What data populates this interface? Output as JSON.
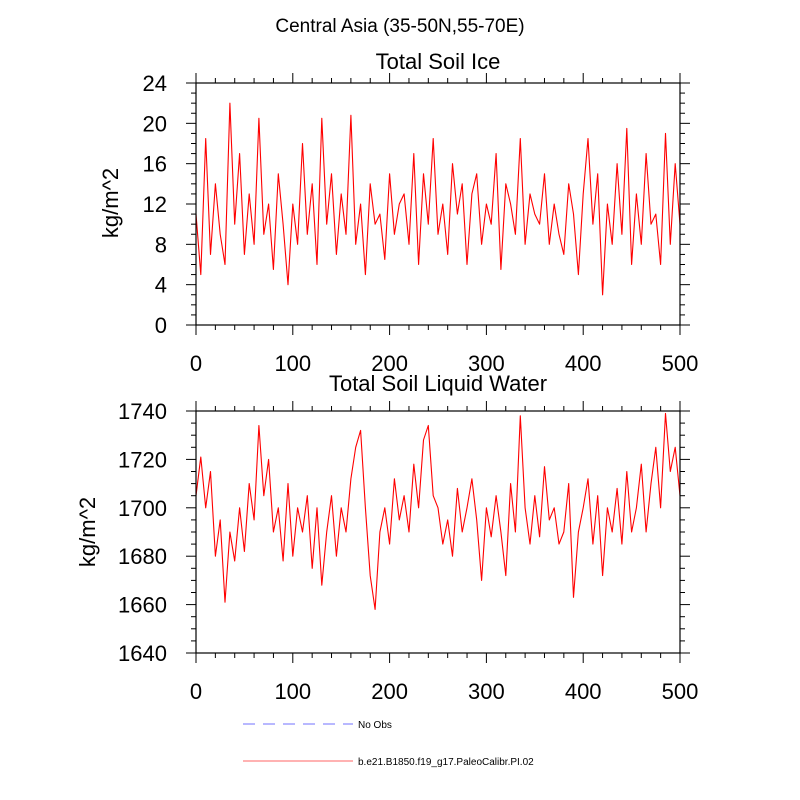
{
  "figure_title": "Central Asia (35-50N,55-70E)",
  "chart_data": [
    {
      "type": "line",
      "title": "Total Soil Ice",
      "xlabel": "",
      "ylabel": "kg/m^2",
      "xlim": [
        0,
        500
      ],
      "ylim": [
        0,
        24
      ],
      "x_ticks": [
        0,
        100,
        200,
        300,
        400,
        500
      ],
      "y_ticks": [
        0,
        4,
        8,
        12,
        16,
        20,
        24
      ],
      "x_tick_labels": [
        "0",
        "100",
        "200",
        "300",
        "400",
        "500"
      ],
      "y_tick_labels": [
        "0",
        "4",
        "8",
        "12",
        "16",
        "20",
        "24"
      ],
      "series": [
        {
          "name": "b.e21.B1850.f19_g17.PaleoCalibr.PI.02",
          "color": "#ff0000",
          "x": [
            0,
            5,
            10,
            15,
            20,
            25,
            30,
            35,
            40,
            45,
            50,
            55,
            60,
            65,
            70,
            75,
            80,
            85,
            90,
            95,
            100,
            105,
            110,
            115,
            120,
            125,
            130,
            135,
            140,
            145,
            150,
            155,
            160,
            165,
            170,
            175,
            180,
            185,
            190,
            195,
            200,
            205,
            210,
            215,
            220,
            225,
            230,
            235,
            240,
            245,
            250,
            255,
            260,
            265,
            270,
            275,
            280,
            285,
            290,
            295,
            300,
            305,
            310,
            315,
            320,
            325,
            330,
            335,
            340,
            345,
            350,
            355,
            360,
            365,
            370,
            375,
            380,
            385,
            390,
            395,
            400,
            405,
            410,
            415,
            420,
            425,
            430,
            435,
            440,
            445,
            450,
            455,
            460,
            465,
            470,
            475,
            480,
            485,
            490,
            495,
            500
          ],
          "values": [
            11,
            5,
            18.5,
            7,
            14,
            9,
            6,
            22,
            10,
            17,
            7,
            13,
            8,
            20.5,
            9,
            12,
            5.5,
            15,
            10,
            4,
            12,
            8,
            18,
            9,
            14,
            6,
            20.5,
            10,
            15,
            7,
            13,
            9,
            20.8,
            8,
            12,
            5,
            14,
            10,
            11,
            6.5,
            15,
            9,
            12,
            13,
            8,
            17,
            6,
            15,
            10,
            18.5,
            9,
            12,
            7,
            16,
            11,
            14,
            6,
            13,
            15,
            8,
            12,
            10,
            17,
            5.5,
            14,
            12,
            9,
            18.5,
            8,
            13,
            11,
            10,
            15,
            8,
            12,
            9,
            7,
            14,
            11,
            5,
            13,
            18.5,
            10,
            15,
            3,
            12,
            8,
            16,
            9,
            19.5,
            6,
            13,
            8,
            17,
            10,
            11,
            6,
            19,
            8,
            16,
            10
          ]
        }
      ]
    },
    {
      "type": "line",
      "title": "Total Soil Liquid Water",
      "xlabel": "",
      "ylabel": "kg/m^2",
      "xlim": [
        0,
        500
      ],
      "ylim": [
        1640,
        1740
      ],
      "x_ticks": [
        0,
        100,
        200,
        300,
        400,
        500
      ],
      "y_ticks": [
        1640,
        1660,
        1680,
        1700,
        1720,
        1740
      ],
      "x_tick_labels": [
        "0",
        "100",
        "200",
        "300",
        "400",
        "500"
      ],
      "y_tick_labels": [
        "1640",
        "1660",
        "1680",
        "1700",
        "1720",
        "1740"
      ],
      "series": [
        {
          "name": "b.e21.B1850.f19_g17.PaleoCalibr.PI.02",
          "color": "#ff0000",
          "x": [
            0,
            5,
            10,
            15,
            20,
            25,
            30,
            35,
            40,
            45,
            50,
            55,
            60,
            65,
            70,
            75,
            80,
            85,
            90,
            95,
            100,
            105,
            110,
            115,
            120,
            125,
            130,
            135,
            140,
            145,
            150,
            155,
            160,
            165,
            170,
            175,
            180,
            185,
            190,
            195,
            200,
            205,
            210,
            215,
            220,
            225,
            230,
            235,
            240,
            245,
            250,
            255,
            260,
            265,
            270,
            275,
            280,
            285,
            290,
            295,
            300,
            305,
            310,
            315,
            320,
            325,
            330,
            335,
            340,
            345,
            350,
            355,
            360,
            365,
            370,
            375,
            380,
            385,
            390,
            395,
            400,
            405,
            410,
            415,
            420,
            425,
            430,
            435,
            440,
            445,
            450,
            455,
            460,
            465,
            470,
            475,
            480,
            485,
            490,
            495,
            500
          ],
          "values": [
            1705,
            1721,
            1700,
            1715,
            1680,
            1695,
            1661,
            1690,
            1678,
            1700,
            1682,
            1710,
            1695,
            1734,
            1705,
            1720,
            1690,
            1700,
            1678,
            1710,
            1680,
            1700,
            1690,
            1705,
            1675,
            1700,
            1668,
            1690,
            1705,
            1680,
            1700,
            1690,
            1712,
            1725,
            1732,
            1700,
            1672,
            1658,
            1690,
            1700,
            1685,
            1712,
            1695,
            1705,
            1690,
            1718,
            1700,
            1728,
            1734,
            1705,
            1700,
            1685,
            1695,
            1680,
            1708,
            1690,
            1700,
            1712,
            1695,
            1670,
            1700,
            1688,
            1705,
            1690,
            1672,
            1710,
            1690,
            1738,
            1700,
            1685,
            1705,
            1688,
            1717,
            1695,
            1700,
            1685,
            1690,
            1710,
            1663,
            1690,
            1700,
            1712,
            1685,
            1705,
            1672,
            1700,
            1690,
            1708,
            1685,
            1715,
            1690,
            1700,
            1718,
            1690,
            1710,
            1725,
            1700,
            1739,
            1715,
            1725,
            1705
          ]
        }
      ]
    }
  ],
  "legend": {
    "placement": "bottom",
    "entries": [
      {
        "label": "No Obs",
        "color": "#a0a0ff",
        "style": "dashed"
      },
      {
        "label": "b.e21.B1850.f19_g17.PaleoCalibr.PI.02",
        "color": "#ff0000",
        "style": "solid"
      }
    ]
  }
}
